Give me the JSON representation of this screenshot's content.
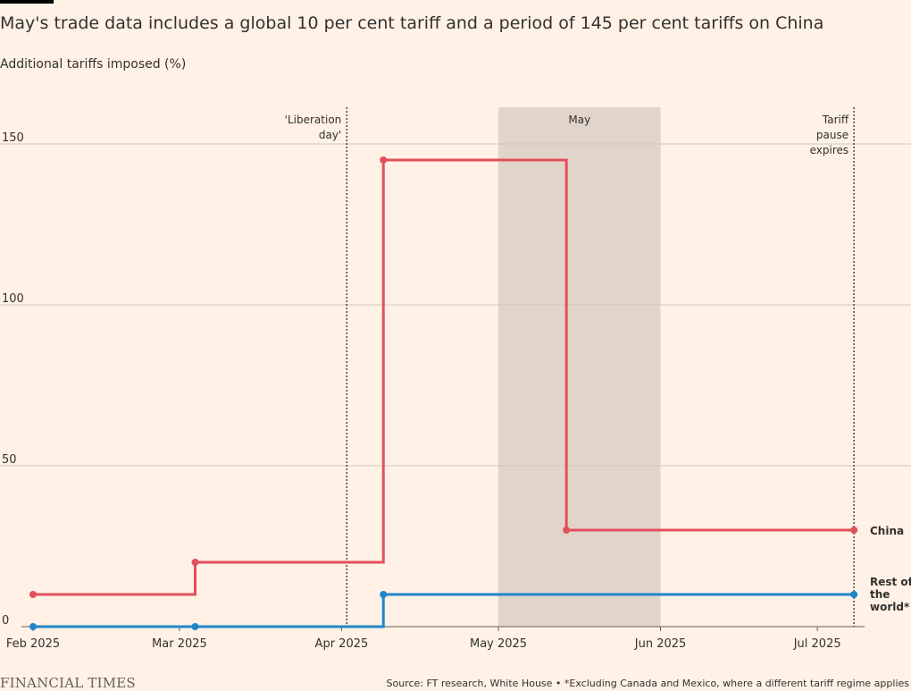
{
  "title": "May's trade data includes a global 10 per cent tariff and a period of 145 per cent tariffs on China",
  "subtitle": "Additional tariffs imposed (%)",
  "footer": {
    "logo": "FINANCIAL TIMES",
    "source": "Source: FT research, White House • *Excluding Canada and Mexico, where a different tariff regime applies"
  },
  "colors": {
    "background": "#fff1e5",
    "china": "#e3505c",
    "rest_of_world": "#1f87c8",
    "shade": "#e1d5cb",
    "grid": "#cec6b9",
    "text": "#33302e"
  },
  "chart_data": {
    "type": "line",
    "step": true,
    "x_ticks": [
      "Feb 2025",
      "Mar 2025",
      "Apr 2025",
      "May 2025",
      "Jun 2025",
      "Jul 2025"
    ],
    "y_ticks": [
      0,
      50,
      100,
      150
    ],
    "ylim": [
      0,
      160
    ],
    "xlim": [
      "2025-02-01",
      "2025-07-09"
    ],
    "grid": true,
    "series": [
      {
        "name": "China",
        "color": "#e3505c",
        "points": [
          {
            "x": "2025-02-01",
            "y": 10
          },
          {
            "x": "2025-03-04",
            "y": 20
          },
          {
            "x": "2025-04-09",
            "y": 145
          },
          {
            "x": "2025-05-14",
            "y": 30
          },
          {
            "x": "2025-07-08",
            "y": 30
          }
        ]
      },
      {
        "name": "Rest of the world*",
        "color": "#1f87c8",
        "points": [
          {
            "x": "2025-02-01",
            "y": 0
          },
          {
            "x": "2025-03-04",
            "y": 0
          },
          {
            "x": "2025-04-09",
            "y": 10
          },
          {
            "x": "2025-07-08",
            "y": 10
          }
        ]
      }
    ],
    "series_labels": {
      "china": "China",
      "rest_of_world": [
        "Rest of",
        "the",
        "world*"
      ]
    },
    "shaded_regions": [
      {
        "from": "2025-05-01",
        "to": "2025-06-01",
        "label": "May"
      }
    ],
    "annotations": [
      {
        "x": "2025-04-02",
        "lines": [
          "'Liberation",
          "day'"
        ]
      },
      {
        "x": "2025-07-08",
        "lines": [
          "Tariff",
          "pause",
          "expires"
        ]
      }
    ]
  }
}
